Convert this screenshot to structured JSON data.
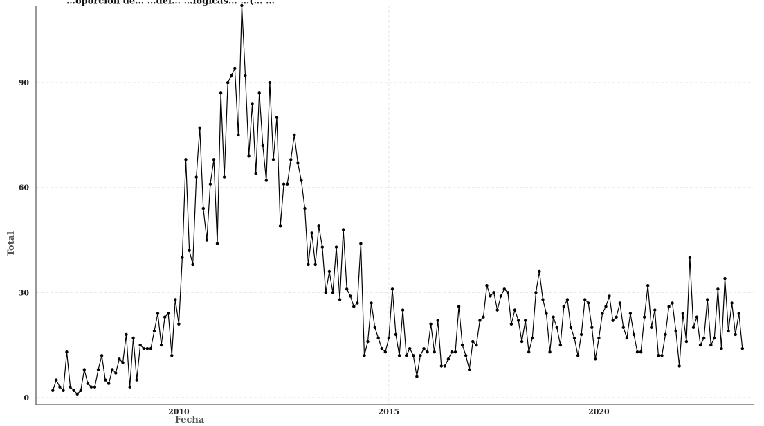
{
  "chart_data": {
    "type": "line",
    "title": "…oporción de… …del… …lógicas… …(… …",
    "xlabel": "Fecha",
    "ylabel": "Total",
    "x_start_year": 2007,
    "xlim": [
      2006.6,
      2023.7
    ],
    "ylim": [
      -2,
      112
    ],
    "x_ticks": [
      2010,
      2015,
      2020
    ],
    "y_ticks": [
      0,
      30,
      60,
      90
    ],
    "grid": true,
    "series": [
      {
        "values": [
          2,
          5,
          3,
          2,
          13,
          3,
          2,
          1,
          2,
          8,
          4,
          3,
          3,
          8,
          12,
          5,
          4,
          8,
          7,
          11,
          10,
          18,
          3,
          17,
          5,
          15,
          14,
          14,
          14,
          19,
          24,
          15,
          23,
          24,
          12,
          28,
          21,
          40,
          68,
          42,
          38,
          63,
          77,
          54,
          45,
          61,
          68,
          44,
          87,
          63,
          90,
          92,
          94,
          75,
          112,
          92,
          69,
          84,
          64,
          87,
          72,
          62,
          90,
          68,
          80,
          49,
          61,
          61,
          68,
          75,
          67,
          62,
          54,
          38,
          47,
          38,
          49,
          43,
          30,
          36,
          30,
          43,
          28,
          48,
          31,
          29,
          26,
          27,
          44,
          12,
          16,
          27,
          20,
          17,
          14,
          13,
          17,
          31,
          18,
          12,
          25,
          12,
          14,
          12,
          6,
          12,
          14,
          13,
          21,
          13,
          22,
          9,
          9,
          11,
          13,
          13,
          26,
          15,
          12,
          8,
          16,
          15,
          22,
          23,
          32,
          29,
          30,
          25,
          29,
          31,
          30,
          21,
          25,
          22,
          16,
          22,
          13,
          17,
          30,
          36,
          28,
          24,
          13,
          23,
          20,
          15,
          26,
          28,
          20,
          17,
          12,
          18,
          28,
          27,
          20,
          11,
          17,
          24,
          26,
          29,
          22,
          23,
          27,
          20,
          17,
          24,
          18,
          13,
          13,
          23,
          32,
          20,
          25,
          12,
          12,
          18,
          26,
          27,
          19,
          9,
          24,
          16,
          40,
          20,
          23,
          15,
          17,
          28,
          15,
          17,
          31,
          14,
          34,
          19,
          27,
          18,
          24,
          14
        ]
      }
    ]
  }
}
